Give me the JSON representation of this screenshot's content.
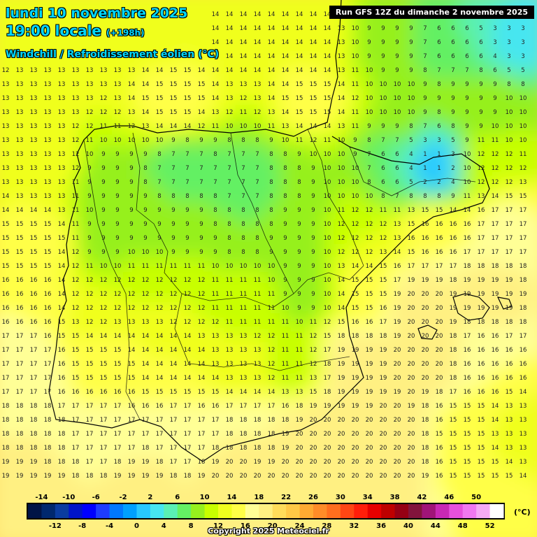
{
  "header": {
    "date": "lundi 10 novembre 2025",
    "time": "19:00 locale",
    "lead": "(+198h)",
    "parameter": "Windchill / Refroidissement éolien (°C)"
  },
  "run_info": "Run GFS 12Z du dimanche 2 novembre 2025",
  "copyright": "Copyright 2025 Meteociel.fr",
  "legend": {
    "unit": "(°C)",
    "steps": [
      -16,
      -14,
      -12,
      -10,
      -8,
      -6,
      -4,
      -2,
      0,
      2,
      4,
      6,
      8,
      10,
      12,
      14,
      16,
      18,
      20,
      22,
      24,
      26,
      28,
      30,
      32,
      34,
      36,
      38,
      40,
      42,
      44,
      46,
      48,
      50,
      52
    ],
    "top_labels": [
      "-14",
      "-10",
      "-6",
      "-2",
      "2",
      "6",
      "10",
      "14",
      "18",
      "22",
      "26",
      "30",
      "34",
      "38",
      "42",
      "46",
      "50"
    ],
    "bottom_labels": [
      "-12",
      "-8",
      "-4",
      "0",
      "4",
      "8",
      "12",
      "16",
      "20",
      "24",
      "28",
      "32",
      "36",
      "40",
      "44",
      "48",
      "52"
    ],
    "colors": [
      "#001446",
      "#00286e",
      "#0a3ca0",
      "#0014c8",
      "#0000ff",
      "#1e3cff",
      "#0078ff",
      "#00a0ff",
      "#28c8ff",
      "#46e6f0",
      "#5af0b4",
      "#64f064",
      "#96f01e",
      "#c8ff00",
      "#f0ff1e",
      "#ffff46",
      "#ffff96",
      "#fff082",
      "#ffdc5a",
      "#ffc846",
      "#ffaa32",
      "#ff8c28",
      "#ff6e1e",
      "#ff4614",
      "#ff1e0a",
      "#e60000",
      "#be0000",
      "#960014",
      "#82143c",
      "#a01478",
      "#c828b4",
      "#e650dc",
      "#f078f0",
      "#f5aaf5",
      "#ffffff"
    ]
  },
  "regions": {
    "grid_note": "Windchill values are printed on a regular grid over the Iberian Peninsula: cold (0–8 °C) over the northern plateau and the Pyrenees, warm (18–22 °C) over the Mediterranean and Andalusia."
  }
}
